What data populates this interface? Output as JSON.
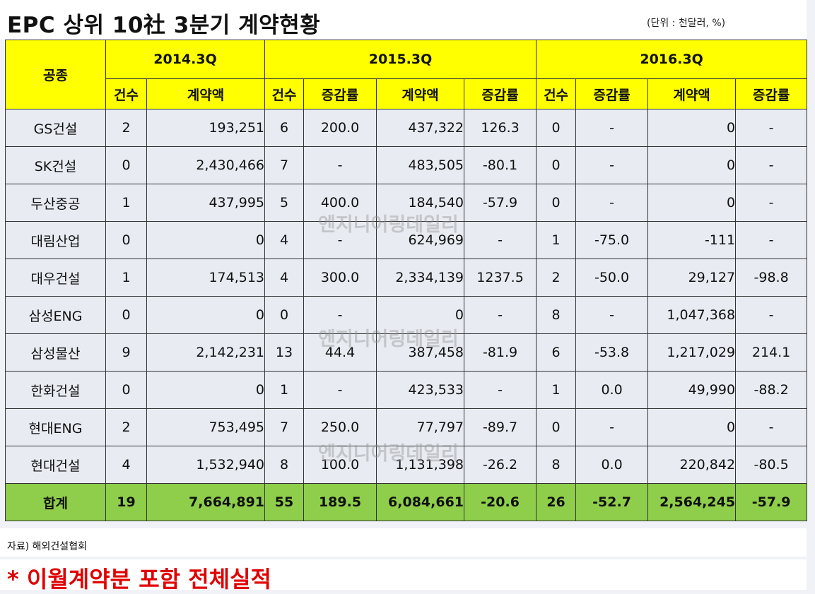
{
  "title": "EPC 상위 10社 3분기 계약현황",
  "unit": "(단위 : 천달러, %)",
  "header": {
    "category": "공종",
    "periods": [
      "2014.3Q",
      "2015.3Q",
      "2016.3Q"
    ],
    "cols": [
      "건수",
      "계약액",
      "건수",
      "증감률",
      "계약액",
      "증감률",
      "건수",
      "증감률",
      "계약액",
      "증감률"
    ]
  },
  "rows": [
    {
      "name": "GS건설",
      "c14": "2",
      "a14": "193,251",
      "c15": "6",
      "g15c": "200.0",
      "a15": "437,322",
      "g15a": "126.3",
      "c16": "0",
      "g16c": "-",
      "a16": "0",
      "g16a": "-"
    },
    {
      "name": "SK건설",
      "c14": "0",
      "a14": "2,430,466",
      "c15": "7",
      "g15c": "-",
      "a15": "483,505",
      "g15a": "-80.1",
      "c16": "0",
      "g16c": "-",
      "a16": "0",
      "g16a": "-"
    },
    {
      "name": "두산중공",
      "c14": "1",
      "a14": "437,995",
      "c15": "5",
      "g15c": "400.0",
      "a15": "184,540",
      "g15a": "-57.9",
      "c16": "0",
      "g16c": "-",
      "a16": "0",
      "g16a": "-"
    },
    {
      "name": "대림산업",
      "c14": "0",
      "a14": "0",
      "c15": "4",
      "g15c": "-",
      "a15": "624,969",
      "g15a": "-",
      "c16": "1",
      "g16c": "-75.0",
      "a16": "-111",
      "g16a": "-"
    },
    {
      "name": "대우건설",
      "c14": "1",
      "a14": "174,513",
      "c15": "4",
      "g15c": "300.0",
      "a15": "2,334,139",
      "g15a": "1237.5",
      "c16": "2",
      "g16c": "-50.0",
      "a16": "29,127",
      "g16a": "-98.8"
    },
    {
      "name": "삼성ENG",
      "c14": "0",
      "a14": "0",
      "c15": "0",
      "g15c": "-",
      "a15": "0",
      "g15a": "-",
      "c16": "8",
      "g16c": "-",
      "a16": "1,047,368",
      "g16a": "-"
    },
    {
      "name": "삼성물산",
      "c14": "9",
      "a14": "2,142,231",
      "c15": "13",
      "g15c": "44.4",
      "a15": "387,458",
      "g15a": "-81.9",
      "c16": "6",
      "g16c": "-53.8",
      "a16": "1,217,029",
      "g16a": "214.1"
    },
    {
      "name": "한화건설",
      "c14": "0",
      "a14": "0",
      "c15": "1",
      "g15c": "-",
      "a15": "423,533",
      "g15a": "-",
      "c16": "1",
      "g16c": "0.0",
      "a16": "49,990",
      "g16a": "-88.2"
    },
    {
      "name": "현대ENG",
      "c14": "2",
      "a14": "753,495",
      "c15": "7",
      "g15c": "250.0",
      "a15": "77,797",
      "g15a": "-89.7",
      "c16": "0",
      "g16c": "-",
      "a16": "0",
      "g16a": "-"
    },
    {
      "name": "현대건설",
      "c14": "4",
      "a14": "1,532,940",
      "c15": "8",
      "g15c": "100.0",
      "a15": "1,131,398",
      "g15a": "-26.2",
      "c16": "8",
      "g16c": "0.0",
      "a16": "220,842",
      "g16a": "-80.5"
    }
  ],
  "total": {
    "name": "합계",
    "c14": "19",
    "a14": "7,664,891",
    "c15": "55",
    "g15c": "189.5",
    "a15": "6,084,661",
    "g15a": "-20.6",
    "c16": "26",
    "g16c": "-52.7",
    "a16": "2,564,245",
    "g16a": "-57.9"
  },
  "watermark": "엔지니어링데일리",
  "source": "자료) 해외건설협회",
  "note": "* 이월계약분 포함 전체실적"
}
